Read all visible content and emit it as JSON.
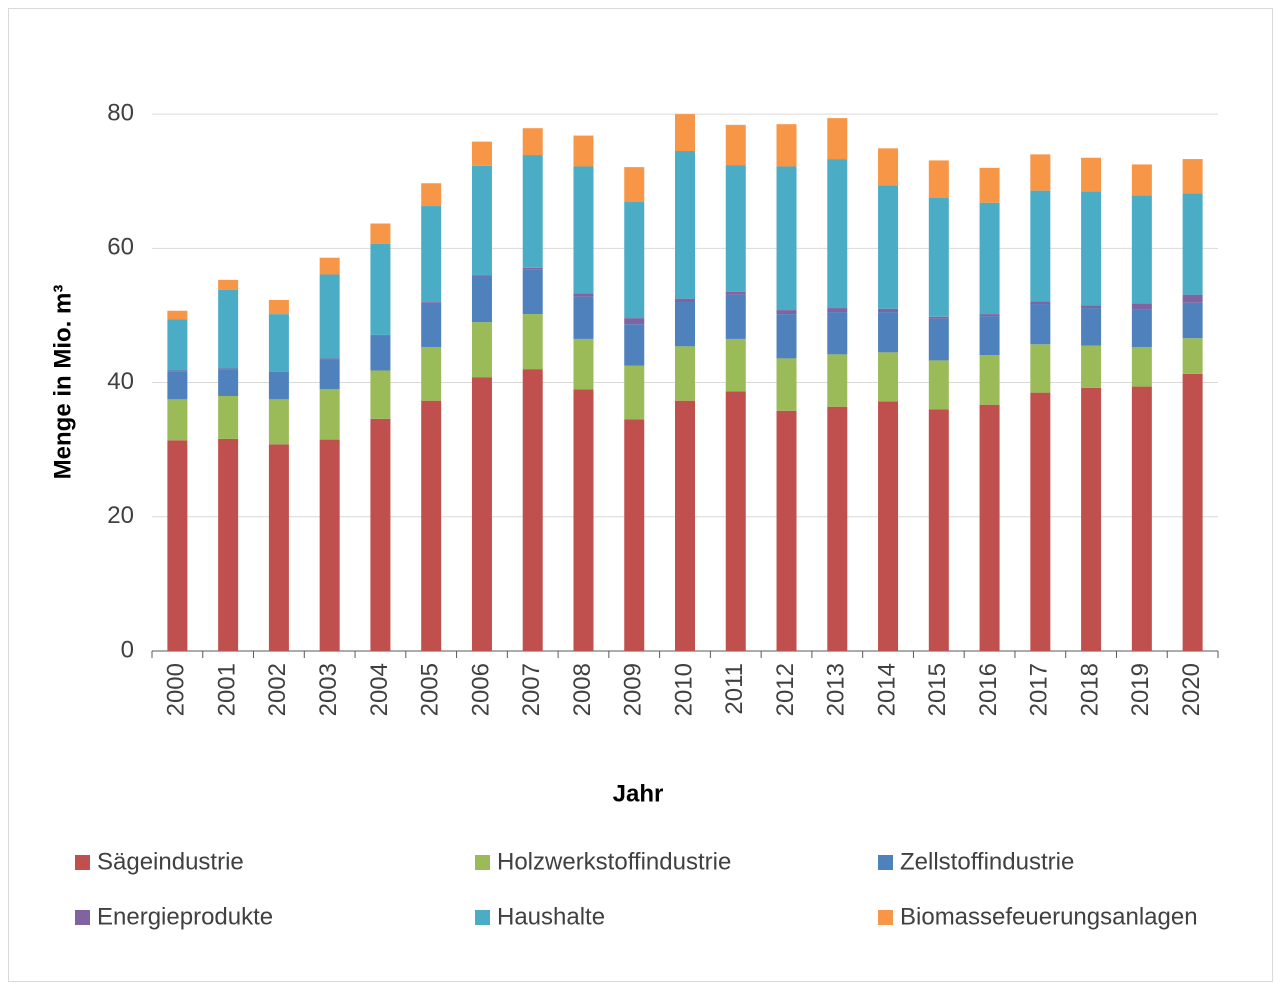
{
  "chart_data": {
    "type": "bar",
    "stacked": true,
    "x_label": "Jahr",
    "y_label": "Menge in Mio. m³",
    "categories": [
      "2000",
      "2001",
      "2002",
      "2003",
      "2004",
      "2005",
      "2006",
      "2007",
      "2008",
      "2009",
      "2010",
      "2011",
      "2012",
      "2013",
      "2014",
      "2015",
      "2016",
      "2017",
      "2018",
      "2019",
      "2020"
    ],
    "series": [
      {
        "name": "Sägeindustrie",
        "color": "#c0504d",
        "values": [
          31.4,
          31.6,
          30.8,
          31.5,
          34.6,
          37.3,
          40.8,
          42.0,
          39.0,
          34.5,
          37.3,
          38.7,
          35.8,
          36.4,
          37.2,
          36.0,
          36.7,
          38.5,
          39.2,
          39.4,
          41.3
        ]
      },
      {
        "name": "Holzwerkstoffindustrie",
        "color": "#9bbb59",
        "values": [
          6.1,
          6.4,
          6.7,
          7.5,
          7.2,
          8.0,
          8.2,
          8.2,
          7.5,
          8.0,
          8.1,
          7.8,
          7.8,
          7.8,
          7.3,
          7.3,
          7.4,
          7.2,
          6.3,
          5.9,
          5.3
        ]
      },
      {
        "name": "Zellstoffindustrie",
        "color": "#4f81bd",
        "values": [
          4.2,
          4.0,
          4.1,
          4.5,
          5.2,
          6.6,
          6.8,
          6.6,
          6.3,
          6.2,
          6.6,
          6.6,
          6.6,
          6.3,
          6.0,
          6.2,
          5.8,
          6.0,
          5.6,
          5.6,
          5.3
        ]
      },
      {
        "name": "Energieprodukte",
        "color": "#8064a2",
        "values": [
          0.1,
          0.1,
          0.1,
          0.1,
          0.1,
          0.1,
          0.2,
          0.3,
          0.5,
          0.9,
          0.5,
          0.4,
          0.6,
          0.6,
          0.5,
          0.3,
          0.3,
          0.4,
          0.4,
          0.9,
          1.2
        ]
      },
      {
        "name": "Haushalte",
        "color": "#4bacc6",
        "values": [
          7.6,
          11.7,
          8.5,
          12.5,
          13.6,
          14.3,
          16.3,
          16.8,
          18.9,
          17.3,
          22.0,
          18.9,
          21.4,
          22.2,
          18.4,
          17.7,
          16.6,
          16.5,
          17.0,
          16.1,
          15.1
        ]
      },
      {
        "name": "Biomassefeuerungsanlagen",
        "color": "#f79646",
        "values": [
          1.3,
          1.5,
          2.1,
          2.5,
          3.0,
          3.4,
          3.6,
          4.0,
          4.6,
          5.2,
          5.5,
          6.0,
          6.3,
          6.1,
          5.5,
          5.6,
          5.2,
          5.4,
          5.0,
          4.6,
          5.1
        ]
      }
    ],
    "ylim": [
      0,
      90
    ],
    "yticks": [
      0,
      20,
      40,
      60,
      80
    ],
    "grid": true,
    "legend": "bottom"
  }
}
